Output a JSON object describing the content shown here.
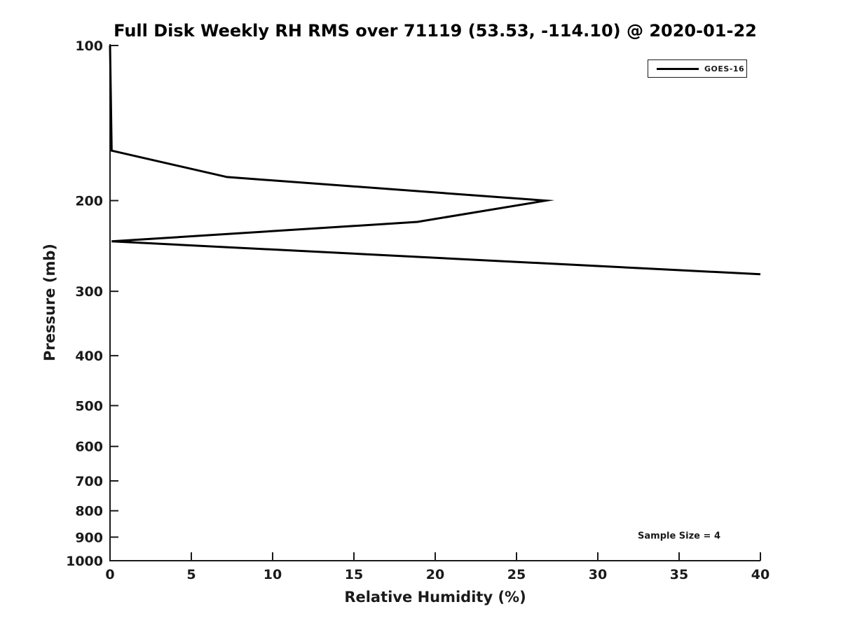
{
  "chart_data": {
    "type": "line",
    "title": "Full Disk Weekly RH RMS over 71119 (53.53, -114.10) @ 2020-01-22",
    "xlabel": "Relative Humidity (%)",
    "ylabel": "Pressure (mb)",
    "xlim": [
      0,
      40
    ],
    "xticks": [
      0,
      5,
      10,
      15,
      20,
      25,
      30,
      35,
      40
    ],
    "ylim": [
      100,
      1000
    ],
    "yscale": "log",
    "y_axis_direction": "increasing-downward",
    "yticks": [
      100,
      200,
      300,
      400,
      500,
      600,
      700,
      800,
      900,
      1000
    ],
    "grid": false,
    "axis_color": "#1a1a1a",
    "legend": {
      "position": "top-right",
      "entries": [
        {
          "label": "GOES-16",
          "color": "#000000"
        }
      ]
    },
    "series": [
      {
        "name": "GOES-16",
        "color": "#000000",
        "points_rh_pressure": [
          [
            0,
            100
          ],
          [
            0.1,
            160
          ],
          [
            7.2,
            180
          ],
          [
            26.8,
            200
          ],
          [
            18.9,
            220
          ],
          [
            0.1,
            240
          ],
          [
            40,
            278
          ]
        ]
      }
    ],
    "annotations": [
      {
        "text": "Sample Size = 4",
        "rh": 35,
        "pressure": 895
      }
    ]
  }
}
